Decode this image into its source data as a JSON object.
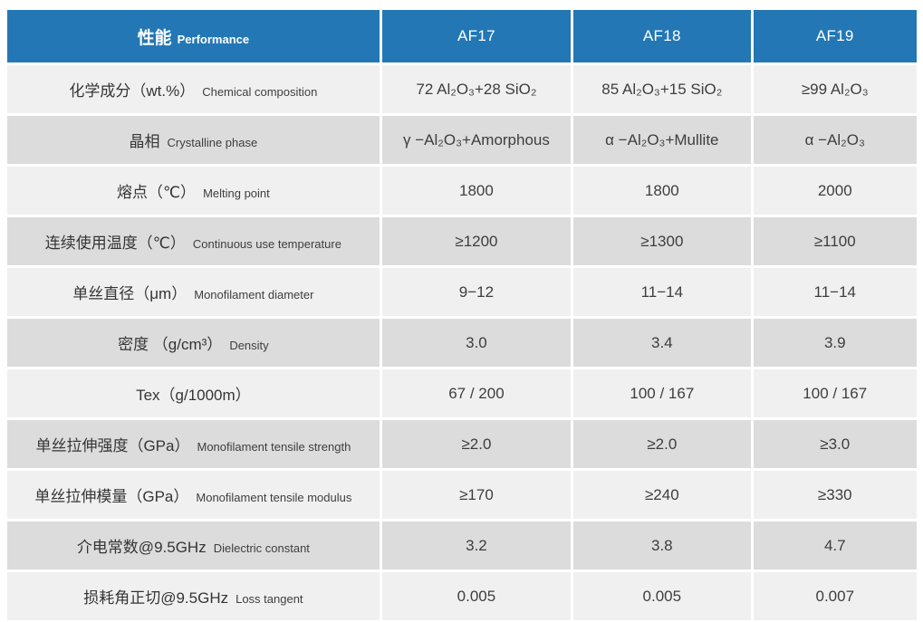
{
  "table": {
    "colors": {
      "header_bg": "#2377b5",
      "header_text": "#ffffff",
      "row_light": "#f0f0f1",
      "row_dark": "#dcdcdd",
      "value_text": "#3e3e3e",
      "separator": "#ffffff"
    },
    "header": {
      "property_zh": "性能",
      "property_en": "Performance",
      "columns": [
        "AF17",
        "AF18",
        "AF19"
      ]
    },
    "rows": [
      {
        "zh": "化学成分（wt.%）",
        "en": "Chemical composition",
        "values": [
          "72 Al₂O₃+28 SiO₂",
          "85 Al₂O₃+15 SiO₂",
          "≥99 Al₂O₃"
        ]
      },
      {
        "zh": "晶相",
        "en": "Crystalline phase",
        "values": [
          "γ −Al₂O₃+Amorphous",
          "α −Al₂O₃+Mullite",
          "α −Al₂O₃"
        ]
      },
      {
        "zh": "熔点（℃）",
        "en": "Melting point",
        "values": [
          "1800",
          "1800",
          "2000"
        ]
      },
      {
        "zh": "连续使用温度（℃）",
        "en": "Continuous use temperature",
        "values": [
          "≥1200",
          "≥1300",
          "≥1100"
        ]
      },
      {
        "zh": "单丝直径（μm）",
        "en": "Monofilament diameter",
        "values": [
          "9−12",
          "11−14",
          "11−14"
        ]
      },
      {
        "zh": "密度 （g/cm³）",
        "en": "Density",
        "values": [
          "3.0",
          "3.4",
          "3.9"
        ]
      },
      {
        "zh": "Tex（g/1000m）",
        "en": "",
        "values": [
          "67 / 200",
          "100 / 167",
          "100 / 167"
        ]
      },
      {
        "zh": "单丝拉伸强度（GPa）",
        "en": "Monofilament tensile strength",
        "values": [
          "≥2.0",
          "≥2.0",
          "≥3.0"
        ]
      },
      {
        "zh": "单丝拉伸模量（GPa）",
        "en": "Monofilament tensile modulus",
        "values": [
          "≥170",
          "≥240",
          "≥330"
        ]
      },
      {
        "zh": "介电常数@9.5GHz",
        "en": "Dielectric constant",
        "values": [
          "3.2",
          "3.8",
          "4.7"
        ]
      },
      {
        "zh": "损耗角正切@9.5GHz",
        "en": "Loss tangent",
        "values": [
          "0.005",
          "0.005",
          "0.007"
        ]
      }
    ]
  }
}
